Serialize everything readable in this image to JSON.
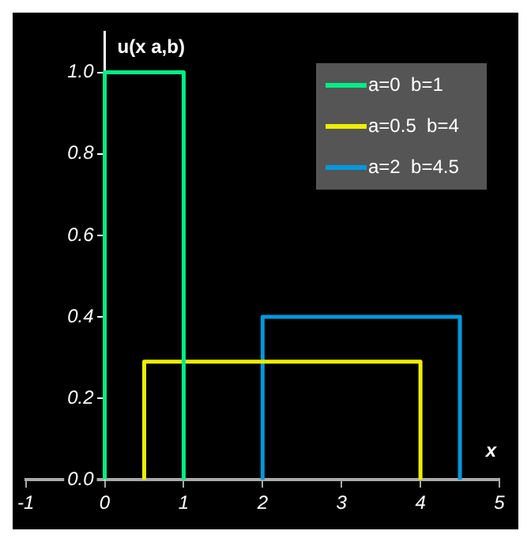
{
  "chart_data": {
    "type": "line",
    "xlabel": "x",
    "ylabel": "u(x a,b)",
    "series": [
      {
        "name": "a=0  b=1",
        "color": "#00ee88",
        "x": [
          0,
          0,
          1,
          1
        ],
        "values": [
          0,
          1,
          1,
          0
        ]
      },
      {
        "name": "a=0.5  b=4",
        "color": "#eeee00",
        "x": [
          0.5,
          0.5,
          4,
          4
        ],
        "values": [
          0,
          0.29,
          0.29,
          0
        ]
      },
      {
        "name": "a=2  b=4.5",
        "color": "#0099dd",
        "x": [
          2,
          2,
          4.5,
          4.5
        ],
        "values": [
          0,
          0.4,
          0.4,
          0
        ]
      }
    ],
    "xlim": [
      -1,
      5
    ],
    "xticks": [
      -1,
      0,
      1,
      2,
      3,
      4,
      5
    ],
    "ylim": [
      0,
      1.1
    ],
    "yticks": [
      {
        "value": 0,
        "label": "0.0"
      },
      {
        "value": 0.2,
        "label": "0.2"
      },
      {
        "value": 0.4,
        "label": "0.4"
      },
      {
        "value": 0.6,
        "label": "0.6"
      },
      {
        "value": 0.8,
        "label": "0.8"
      },
      {
        "value": 1,
        "label": "1.0"
      }
    ],
    "grid": false,
    "legend": "top right",
    "marker": "none",
    "line_style": "solid"
  }
}
